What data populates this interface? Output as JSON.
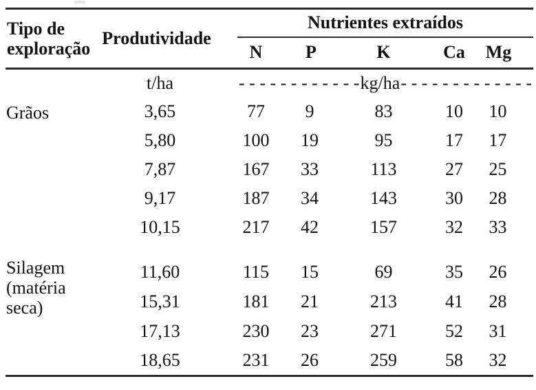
{
  "colors": {
    "background": "#ffffff",
    "text": "#121212",
    "rule": "#2b2b2b"
  },
  "table": {
    "header": {
      "col_tipo": {
        "line1": "Tipo de",
        "line2": "exploração"
      },
      "col_produtividade": "Produtividade",
      "nutrients_group": "Nutrientes extraídos",
      "nutrient_cols": [
        "N",
        "P",
        "K",
        "Ca",
        "Mg"
      ]
    },
    "units": {
      "produtividade": "t/ha",
      "dashes_left": "- - - - - - - - - - - -",
      "nutrients_label": "kg/ha",
      "dashes_right": "- - - - - - - - - - - - -"
    },
    "sections": [
      {
        "label_line1": "Grãos",
        "label_line2": "",
        "rows": [
          {
            "produtividade": "3,65",
            "n": "77",
            "p": "9",
            "k": "83",
            "ca": "10",
            "mg": "10"
          },
          {
            "produtividade": "5,80",
            "n": "100",
            "p": "19",
            "k": "95",
            "ca": "17",
            "mg": "17"
          },
          {
            "produtividade": "7,87",
            "n": "167",
            "p": "33",
            "k": "113",
            "ca": "27",
            "mg": "25"
          },
          {
            "produtividade": "9,17",
            "n": "187",
            "p": "34",
            "k": "143",
            "ca": "30",
            "mg": "28"
          },
          {
            "produtividade": "10,15",
            "n": "217",
            "p": "42",
            "k": "157",
            "ca": "32",
            "mg": "33"
          }
        ]
      },
      {
        "label_line1": "Silagem",
        "label_line2": "(matéria seca)",
        "rows": [
          {
            "produtividade": "11,60",
            "n": "115",
            "p": "15",
            "k": "69",
            "ca": "35",
            "mg": "26"
          },
          {
            "produtividade": "15,31",
            "n": "181",
            "p": "21",
            "k": "213",
            "ca": "41",
            "mg": "28"
          },
          {
            "produtividade": "17,13",
            "n": "230",
            "p": "23",
            "k": "271",
            "ca": "52",
            "mg": "31"
          },
          {
            "produtividade": "18,65",
            "n": "231",
            "p": "26",
            "k": "259",
            "ca": "58",
            "mg": "32"
          }
        ]
      }
    ]
  }
}
